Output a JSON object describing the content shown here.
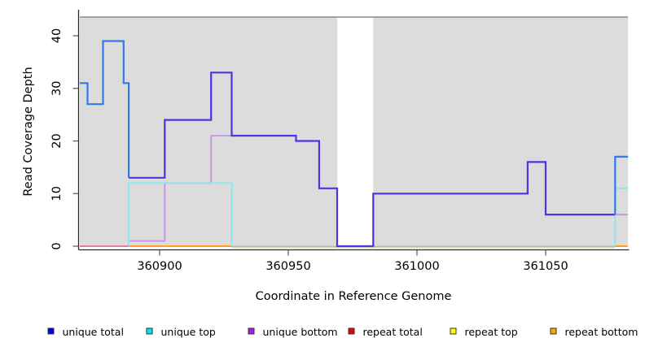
{
  "figure": {
    "plot_bg_color": "#DCDCDC",
    "plot_top_border_color": "#999999",
    "axis_color": "#2a2a2a",
    "tick_color": "#555555",
    "y_axis": {
      "title": "Read Coverage Depth",
      "ticks": [
        "0",
        "10",
        "20",
        "30",
        "40"
      ]
    },
    "x_axis": {
      "title": "Coordinate in Reference Genome",
      "ticks": [
        "360900",
        "360950",
        "361000",
        "361050"
      ]
    }
  },
  "legend": {
    "items": [
      {
        "label": "unique total",
        "color": "#0000EE"
      },
      {
        "label": "unique top",
        "color": "#00E5EE"
      },
      {
        "label": "unique bottom",
        "color": "#A020F0"
      },
      {
        "label": "repeat total",
        "color": "#EE0000"
      },
      {
        "label": "repeat top",
        "color": "#FFFF00"
      },
      {
        "label": "repeat bottom",
        "color": "#FFA500"
      }
    ],
    "swatch_border_color": "#333333"
  },
  "chart_data": {
    "type": "line",
    "subtype": "step-coverage",
    "title": "",
    "xlabel": "Coordinate in Reference Genome",
    "ylabel": "Read Coverage Depth",
    "xlim": [
      360869,
      361082
    ],
    "ylim": [
      0,
      43.6
    ],
    "x_ticks": [
      360900,
      360950,
      361000,
      361050
    ],
    "y_ticks": [
      0,
      10,
      20,
      30,
      40
    ],
    "grid": false,
    "legend_position": "bottom",
    "gap_region": [
      360969,
      360983
    ],
    "series": [
      {
        "name": "unique total",
        "steps": [
          [
            360869,
            31
          ],
          [
            360872,
            27
          ],
          [
            360878,
            39
          ],
          [
            360886,
            31
          ],
          [
            360888,
            13
          ],
          [
            360902,
            24
          ],
          [
            360920,
            33
          ],
          [
            360928,
            21
          ],
          [
            360953,
            20
          ],
          [
            360962,
            11
          ],
          [
            360969,
            0
          ],
          [
            360983,
            10
          ],
          [
            361043,
            16
          ],
          [
            361050,
            6
          ],
          [
            361077,
            17
          ],
          [
            361082,
            17
          ]
        ]
      },
      {
        "name": "unique top",
        "steps": [
          [
            360869,
            0
          ],
          [
            360888,
            12
          ],
          [
            360928,
            0
          ],
          [
            361077,
            11
          ],
          [
            361082,
            11
          ]
        ]
      },
      {
        "name": "unique bottom",
        "steps": [
          [
            360869,
            0
          ],
          [
            360888,
            1
          ],
          [
            360902,
            12
          ],
          [
            360920,
            21
          ],
          [
            360928,
            21
          ],
          [
            360953,
            20
          ],
          [
            360962,
            11
          ],
          [
            360969,
            0
          ],
          [
            360983,
            10
          ],
          [
            361043,
            16
          ],
          [
            361050,
            6
          ],
          [
            361077,
            6
          ],
          [
            361082,
            6
          ]
        ]
      },
      {
        "name": "repeat total",
        "steps": [
          [
            360869,
            0
          ],
          [
            360888,
            0
          ]
        ]
      },
      {
        "name": "repeat top",
        "steps": [
          [
            360928,
            0
          ],
          [
            361077,
            0
          ]
        ]
      },
      {
        "name": "repeat bottom",
        "steps": [
          [
            360888,
            0
          ],
          [
            360928,
            0
          ],
          [
            361077,
            0
          ],
          [
            361082,
            0
          ]
        ]
      }
    ],
    "render_layers": [
      {
        "name": "zero-line-repeat-total",
        "color": "#E87A9A",
        "width": 2.0,
        "dy": 0,
        "points": [
          [
            360869,
            0
          ],
          [
            360888,
            0
          ]
        ]
      },
      {
        "name": "zero-line-repeat-top",
        "color": "#EFE8B4",
        "width": 1.6,
        "dy": 2.0,
        "points": [
          [
            360928,
            0
          ],
          [
            361077,
            0
          ]
        ]
      },
      {
        "name": "zero-line-repeat-bottom-left",
        "color": "#FFA020",
        "width": 2.0,
        "dy": 0,
        "points": [
          [
            360888,
            0
          ],
          [
            360928,
            0
          ]
        ]
      },
      {
        "name": "zero-line-unique-top-overlap",
        "color": "#96CE96",
        "width": 1.8,
        "dy": 0.5,
        "points": [
          [
            360928,
            0
          ],
          [
            361077,
            0
          ]
        ]
      },
      {
        "name": "zero-line-repeat-bottom-right",
        "color": "#FFA020",
        "width": 2.0,
        "dy": 0,
        "points": [
          [
            361077,
            0
          ],
          [
            361082,
            0
          ]
        ]
      },
      {
        "name": "unique-bottom-visible-left",
        "color": "#C292E2",
        "width": 1.8,
        "dy": 0,
        "points": [
          [
            360888,
            0
          ],
          [
            360888,
            1
          ],
          [
            360902,
            1
          ],
          [
            360902,
            12
          ],
          [
            360920,
            12
          ],
          [
            360920,
            21
          ],
          [
            360932,
            21
          ]
        ]
      },
      {
        "name": "unique-bottom-visible-right",
        "color": "#C292E2",
        "width": 1.8,
        "dy": 0,
        "points": [
          [
            361077,
            6
          ],
          [
            361082,
            6
          ]
        ]
      },
      {
        "name": "unique-top-visible-left",
        "color": "#86E8EA",
        "width": 1.8,
        "dy": 0,
        "points": [
          [
            360888,
            0
          ],
          [
            360888,
            12
          ],
          [
            360928,
            12
          ],
          [
            360928,
            0
          ]
        ]
      },
      {
        "name": "unique-top-visible-right",
        "color": "#86E8EA",
        "width": 1.8,
        "dy": 0,
        "points": [
          [
            361077,
            0
          ],
          [
            361077,
            11
          ],
          [
            361082,
            11
          ]
        ]
      },
      {
        "name": "unique-total-with-bottom-overlap",
        "color": "#4A35E0",
        "width": 2.2,
        "dy": 0,
        "points": [
          [
            360888,
            13
          ],
          [
            360902,
            13
          ],
          [
            360902,
            24
          ],
          [
            360920,
            24
          ],
          [
            360920,
            33
          ],
          [
            360928,
            33
          ],
          [
            360928,
            21
          ],
          [
            360953,
            21
          ],
          [
            360953,
            20
          ],
          [
            360962,
            20
          ],
          [
            360962,
            11
          ],
          [
            360969,
            11
          ],
          [
            360969,
            0
          ],
          [
            360983,
            0
          ],
          [
            360983,
            10
          ],
          [
            361043,
            10
          ],
          [
            361043,
            16
          ],
          [
            361050,
            16
          ],
          [
            361050,
            6
          ],
          [
            361077,
            6
          ]
        ]
      },
      {
        "name": "unique-total-left",
        "color": "#3377F0",
        "width": 2.2,
        "dy": 0,
        "points": [
          [
            360869,
            31
          ],
          [
            360872,
            31
          ],
          [
            360872,
            27
          ],
          [
            360878,
            27
          ],
          [
            360878,
            39
          ],
          [
            360886,
            39
          ],
          [
            360886,
            31
          ],
          [
            360888,
            31
          ],
          [
            360888,
            13
          ]
        ]
      },
      {
        "name": "unique-total-right",
        "color": "#3377F0",
        "width": 2.2,
        "dy": 0,
        "points": [
          [
            361077,
            6
          ],
          [
            361077,
            17
          ],
          [
            361082,
            17
          ]
        ]
      }
    ]
  }
}
